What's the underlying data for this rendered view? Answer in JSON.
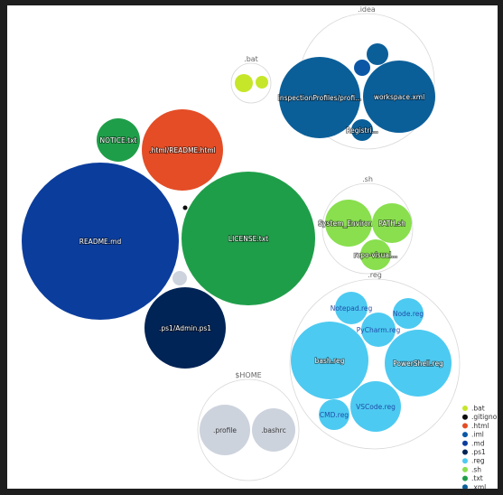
{
  "chart_data": {
    "type": "circle-packing",
    "title": "",
    "legend_position": "bottom-right",
    "legend": [
      {
        "ext": ".bat",
        "color": "#c6e62a"
      },
      {
        "ext": ".gitignore",
        "color": "#0d0d0d"
      },
      {
        "ext": ".html",
        "color": "#e44d26"
      },
      {
        "ext": ".iml",
        "color": "#0b57a6"
      },
      {
        "ext": ".md",
        "color": "#0b3d9c"
      },
      {
        "ext": ".ps1",
        "color": "#012456"
      },
      {
        "ext": ".reg",
        "color": "#4dcaf1"
      },
      {
        "ext": ".sh",
        "color": "#89df4e"
      },
      {
        "ext": ".txt",
        "color": "#1f9e49"
      },
      {
        "ext": ".xml",
        "color": "#0b5f99"
      }
    ],
    "groups": [
      {
        "name": ".idea",
        "files": [
          {
            "label": "inspectionProfiles/profi...",
            "ext": ".xml",
            "size": 8200
          },
          {
            "label": "workspace.xml",
            "ext": ".xml",
            "size": 8000
          },
          {
            "label": "Registri...",
            "ext": ".xml",
            "size": 700
          },
          {
            "label": "",
            "ext": ".xml",
            "size": 600
          },
          {
            "label": "",
            "ext": ".iml",
            "size": 400
          }
        ]
      },
      {
        "name": ".bat",
        "files": [
          {
            "label": "",
            "ext": ".bat",
            "size": 120
          },
          {
            "label": "",
            "ext": ".bat",
            "size": 70
          }
        ]
      },
      {
        "name": ".sh",
        "files": [
          {
            "label": "System_Environ...",
            "ext": ".sh",
            "size": 1600
          },
          {
            "label": "PATH.sh",
            "ext": ".sh",
            "size": 1500
          },
          {
            "label": "repo-visual...",
            "ext": ".sh",
            "size": 1000
          }
        ]
      },
      {
        "name": ".reg",
        "files": [
          {
            "label": "Notepad.reg",
            "ext": ".reg",
            "size": 1500
          },
          {
            "label": "Node.reg",
            "ext": ".reg",
            "size": 1300
          },
          {
            "label": "PyCharm.reg",
            "ext": ".reg",
            "size": 1600
          },
          {
            "label": "bash.reg",
            "ext": ".reg",
            "size": 8300
          },
          {
            "label": "PowerShell.reg",
            "ext": ".reg",
            "size": 6500
          },
          {
            "label": "VSCode.reg",
            "ext": ".reg",
            "size": 3900
          },
          {
            "label": "CMD.reg",
            "ext": ".reg",
            "size": 1300
          }
        ]
      },
      {
        "name": "$HOME",
        "files": [
          {
            "label": ".profile",
            "ext": "",
            "size": 3500
          },
          {
            "label": ".bashrc",
            "ext": "",
            "size": 2600
          }
        ]
      },
      {
        "name": "",
        "files": [
          {
            "label": "README.md",
            "ext": ".md",
            "size": 33000
          },
          {
            "label": "LICENSE.txt",
            "ext": ".txt",
            "size": 24000
          },
          {
            "label": ".html/README.html",
            "ext": ".html",
            "size": 8800
          },
          {
            "label": "NOTICE.txt",
            "ext": ".txt",
            "size": 2600
          },
          {
            "label": ".ps1/Admin.ps1",
            "ext": ".ps1",
            "size": 8700
          },
          {
            "label": "",
            "ext": "",
            "size": 280
          },
          {
            "label": "",
            "ext": ".gitignore",
            "size": 30
          }
        ]
      }
    ]
  }
}
